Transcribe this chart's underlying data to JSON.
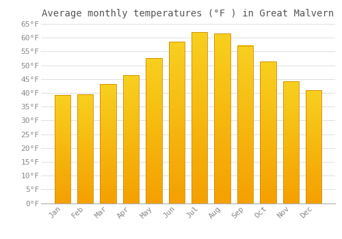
{
  "title": "Average monthly temperatures (°F ) in Great Malvern",
  "months": [
    "Jan",
    "Feb",
    "Mar",
    "Apr",
    "May",
    "Jun",
    "Jul",
    "Aug",
    "Sep",
    "Oct",
    "Nov",
    "Dec"
  ],
  "values": [
    39.2,
    39.4,
    43.2,
    46.4,
    52.7,
    58.5,
    62.1,
    61.5,
    57.2,
    51.3,
    44.1,
    41.0
  ],
  "bar_color_top": "#FFD060",
  "bar_color_bottom": "#F5A000",
  "bar_color_edge": "#CC8800",
  "background_color": "#FFFFFF",
  "grid_color": "#DDDDDD",
  "title_color": "#555555",
  "tick_color": "#888888",
  "ylim": [
    0,
    65
  ],
  "yticks": [
    0,
    5,
    10,
    15,
    20,
    25,
    30,
    35,
    40,
    45,
    50,
    55,
    60,
    65
  ],
  "title_fontsize": 10,
  "tick_fontsize": 8
}
